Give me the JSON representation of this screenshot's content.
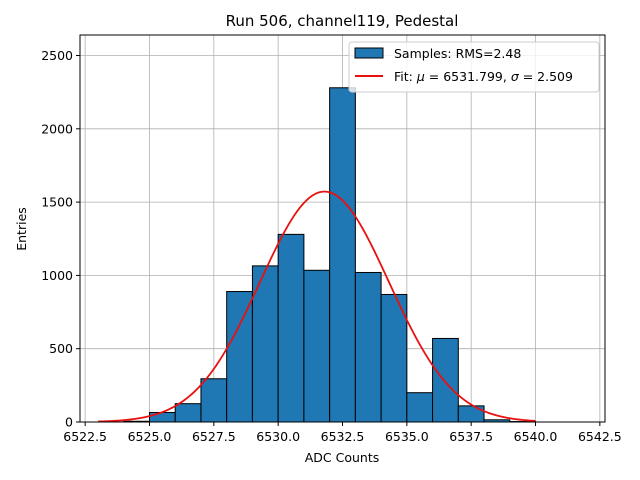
{
  "chart_data": {
    "type": "bar",
    "title": "Run 506, channel119, Pedestal",
    "xlabel": "ADC Counts",
    "ylabel": "Entries",
    "xlim": [
      6522.3,
      6542.7
    ],
    "ylim": [
      0,
      2640
    ],
    "x_ticks": [
      6522.5,
      6525.0,
      6527.5,
      6530.0,
      6532.5,
      6535.0,
      6537.5,
      6540.0,
      6542.5
    ],
    "x_tick_labels": [
      "6522.5",
      "6525.0",
      "6527.5",
      "6530.0",
      "6532.5",
      "6535.0",
      "6537.5",
      "6540.0",
      "6542.5"
    ],
    "y_ticks": [
      0,
      500,
      1000,
      1500,
      2000,
      2500
    ],
    "y_tick_labels": [
      "0",
      "500",
      "1000",
      "1500",
      "2000",
      "2500"
    ],
    "grid": true,
    "legend_position": "top-right",
    "histogram": {
      "name": "Samples: RMS=2.48",
      "bin_edges": [
        6524,
        6525,
        6526,
        6527,
        6528,
        6529,
        6530,
        6531,
        6532,
        6533,
        6534,
        6535,
        6536,
        6537,
        6538,
        6539,
        6540
      ],
      "counts": [
        5,
        65,
        125,
        295,
        890,
        1065,
        1280,
        1035,
        2280,
        1020,
        870,
        200,
        570,
        110,
        15,
        3
      ],
      "color": "#1f77b4",
      "edgecolor": "#000000"
    },
    "fit": {
      "name": "Fit: μ = 6531.799, σ = 2.509",
      "mu": 6531.799,
      "sigma": 2.509,
      "amplitude": 1572,
      "x_range": [
        6523,
        6540
      ],
      "color": "#e8110f"
    },
    "legend": [
      {
        "kind": "patch",
        "label": "Samples: RMS=2.48",
        "color": "#1f77b4"
      },
      {
        "kind": "line",
        "label_prefix": "Fit: ",
        "mu_symbol": "μ",
        "mu_text": " = 6531.799, ",
        "sigma_symbol": "σ",
        "sigma_text": " = 2.509",
        "color": "#e8110f"
      }
    ]
  }
}
